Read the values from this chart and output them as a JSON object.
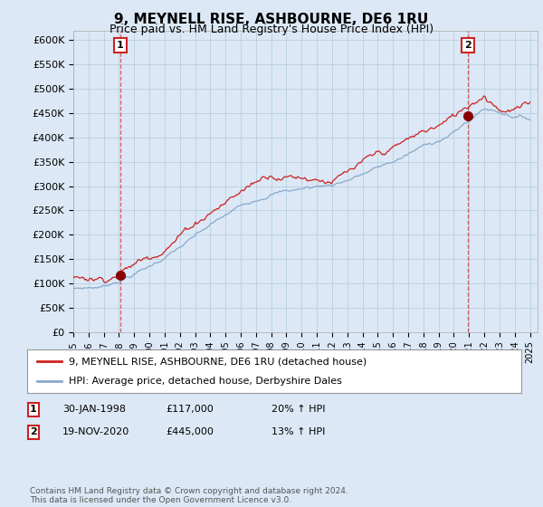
{
  "title": "9, MEYNELL RISE, ASHBOURNE, DE6 1RU",
  "subtitle": "Price paid vs. HM Land Registry's House Price Index (HPI)",
  "sale1_date": 1998.08,
  "sale1_price": 117000,
  "sale1_label": "1",
  "sale2_date": 2020.9,
  "sale2_price": 445000,
  "sale2_label": "2",
  "hpi_color": "#88aacc",
  "price_color": "#cc2222",
  "legend_label1": "9, MEYNELL RISE, ASHBOURNE, DE6 1RU (detached house)",
  "legend_label2": "HPI: Average price, detached house, Derbyshire Dales",
  "note1_label": "1",
  "note1_date": "30-JAN-1998",
  "note1_price": "£117,000",
  "note1_hpi": "20% ↑ HPI",
  "note2_label": "2",
  "note2_date": "19-NOV-2020",
  "note2_price": "£445,000",
  "note2_hpi": "13% ↑ HPI",
  "footer": "Contains HM Land Registry data © Crown copyright and database right 2024.\nThis data is licensed under the Open Government Licence v3.0.",
  "bg_color": "#dce8f5",
  "plot_bg_color": "#dce8f5",
  "grid_color": "#b8cfe0"
}
